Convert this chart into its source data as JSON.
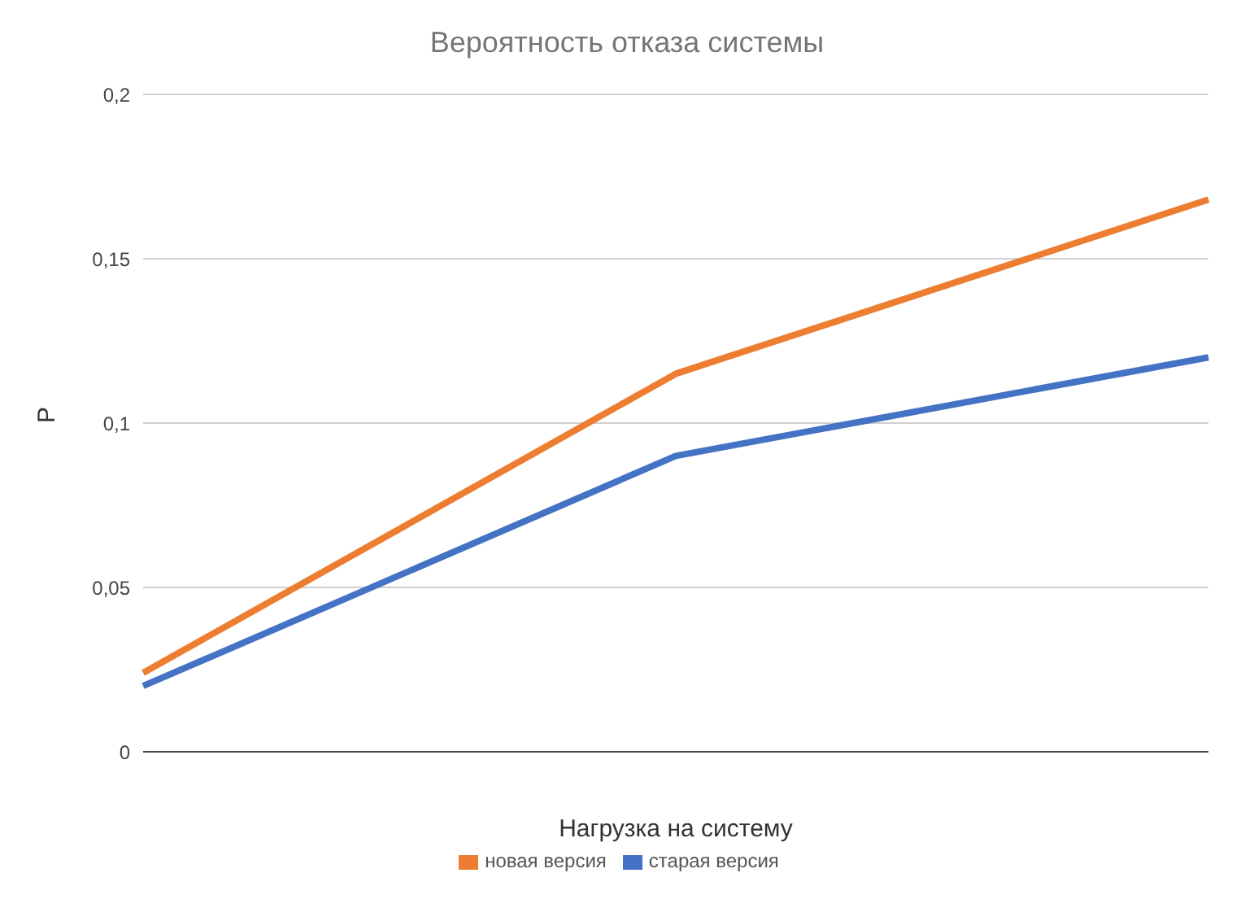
{
  "chart_data": {
    "type": "line",
    "title": "Вероятность отказа системы",
    "xlabel": "Нагрузка на систему",
    "ylabel": "P",
    "categories": [
      null,
      null,
      null
    ],
    "series": [
      {
        "name": "старая версия",
        "color": "#4472c4",
        "values": [
          0.02,
          0.09,
          0.12
        ]
      },
      {
        "name": "новая версия",
        "color": "#ed7d31",
        "values": [
          0.024,
          0.115,
          0.168
        ]
      }
    ],
    "ylim": [
      0,
      0.2
    ],
    "yticks": [
      0,
      {
        "value": 0.05,
        "label": "0,05"
      },
      {
        "value": 0.1,
        "label": "0,1"
      },
      {
        "value": 0.15,
        "label": "0,15"
      },
      {
        "value": 0.2,
        "label": "0,2"
      }
    ],
    "grid": "y",
    "legend": "bottom",
    "marker": "none",
    "line_style": "solid",
    "tick_labels": "y"
  }
}
